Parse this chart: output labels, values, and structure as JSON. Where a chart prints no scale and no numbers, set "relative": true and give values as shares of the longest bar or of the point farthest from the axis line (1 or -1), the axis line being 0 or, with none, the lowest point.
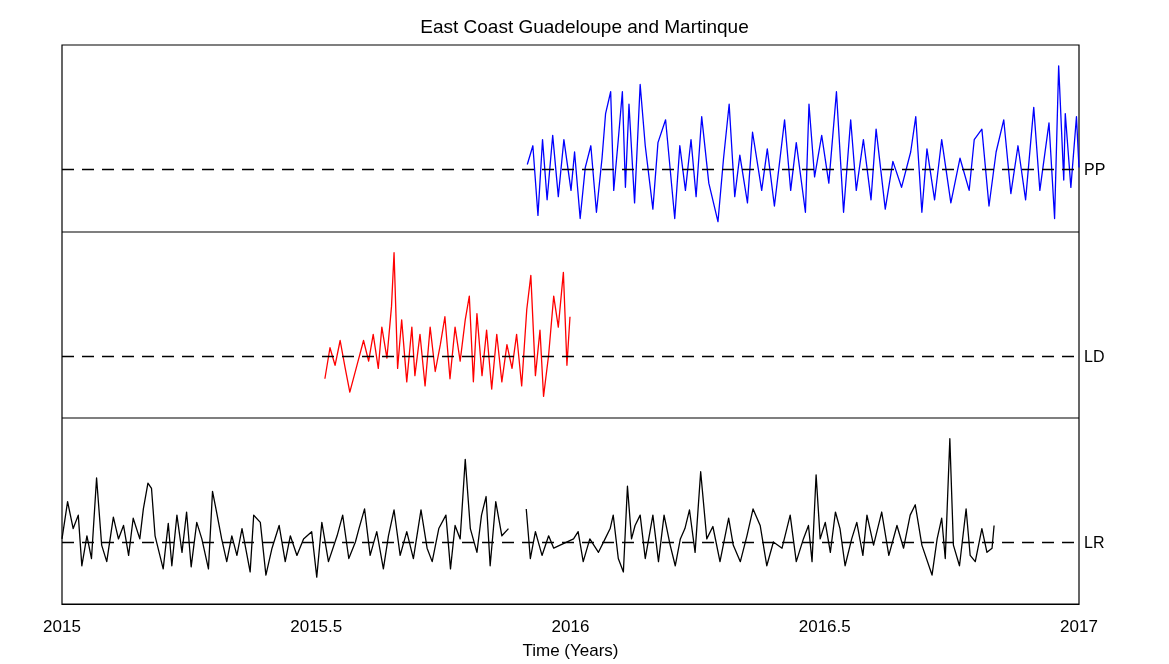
{
  "chart_data": [
    {
      "type": "line",
      "title": "East Coast Guadeloupe and Martinque",
      "relative": true,
      "marker": "none",
      "xlim": [
        2015,
        2017
      ],
      "xticks": [
        2015,
        2015.5,
        2016,
        2016.5,
        2017
      ],
      "tick_labels": false,
      "ref_lines": [
        {
          "axis": "y",
          "value": 0,
          "label": "PP",
          "line_style": "dashed",
          "color": "#000000"
        }
      ],
      "series": [
        {
          "color": "#0000ff",
          "x": [
            2015.915,
            2015.926,
            2015.936,
            2015.945,
            2015.954,
            2015.965,
            2015.976,
            2015.987,
            2016.001,
            2016.008,
            2016.019,
            2016.029,
            2016.04,
            2016.051,
            2016.062,
            2016.069,
            2016.079,
            2016.085,
            2016.094,
            2016.102,
            2016.108,
            2016.115,
            2016.126,
            2016.137,
            2016.147,
            2016.162,
            2016.172,
            2016.187,
            2016.205,
            2016.215,
            2016.226,
            2016.237,
            2016.247,
            2016.258,
            2016.272,
            2016.29,
            2016.301,
            2016.312,
            2016.323,
            2016.333,
            2016.348,
            2016.358,
            2016.376,
            2016.387,
            2016.401,
            2016.421,
            2016.433,
            2016.444,
            2016.462,
            2016.469,
            2016.48,
            2016.494,
            2016.508,
            2016.523,
            2016.537,
            2016.551,
            2016.562,
            2016.576,
            2016.591,
            2016.601,
            2016.619,
            2016.634,
            2016.651,
            2016.669,
            2016.679,
            2016.691,
            2016.701,
            2016.716,
            2016.73,
            2016.748,
            2016.766,
            2016.784,
            2016.794,
            2016.809,
            2016.823,
            2016.837,
            2016.852,
            2016.866,
            2016.88,
            2016.895,
            2016.911,
            2016.923,
            2016.941,
            2016.952,
            2016.96,
            2016.97,
            2016.973,
            2016.984,
            2016.995,
            2017
          ],
          "values": [
            0.05,
            0.23,
            -0.44,
            0.29,
            -0.29,
            0.33,
            -0.26,
            0.29,
            -0.2,
            0.17,
            -0.47,
            0.02,
            0.23,
            -0.41,
            0.11,
            0.54,
            0.75,
            -0.2,
            0.29,
            0.75,
            -0.17,
            0.63,
            -0.32,
            0.82,
            0.23,
            -0.38,
            0.26,
            0.48,
            -0.47,
            0.23,
            -0.2,
            0.29,
            -0.26,
            0.51,
            -0.13,
            -0.5,
            0.11,
            0.63,
            -0.26,
            0.14,
            -0.32,
            0.36,
            -0.2,
            0.2,
            -0.35,
            0.48,
            -0.2,
            0.26,
            -0.41,
            0.63,
            -0.07,
            0.33,
            -0.13,
            0.75,
            -0.41,
            0.48,
            -0.2,
            0.29,
            -0.29,
            0.39,
            -0.38,
            0.08,
            -0.17,
            0.17,
            0.51,
            -0.41,
            0.2,
            -0.29,
            0.29,
            -0.32,
            0.11,
            -0.2,
            0.29,
            0.39,
            -0.35,
            0.17,
            0.48,
            -0.23,
            0.23,
            -0.29,
            0.6,
            -0.2,
            0.45,
            -0.47,
            1,
            -0.1,
            0.54,
            -0.17,
            0.51,
            0.02
          ]
        }
      ]
    },
    {
      "type": "line",
      "relative": true,
      "marker": "none",
      "xlim": [
        2015,
        2017
      ],
      "xticks": [
        2015,
        2015.5,
        2016,
        2016.5,
        2017
      ],
      "tick_labels": false,
      "ref_lines": [
        {
          "axis": "y",
          "value": 0,
          "label": "LD",
          "line_style": "dashed",
          "color": "#000000"
        }
      ],
      "series": [
        {
          "color": "#ff0000",
          "x": [
            2015.517,
            2015.527,
            2015.537,
            2015.547,
            2015.557,
            2015.566,
            2015.58,
            2015.593,
            2015.603,
            2015.612,
            2015.622,
            2015.629,
            2015.639,
            2015.648,
            2015.653,
            2015.66,
            2015.668,
            2015.678,
            2015.688,
            2015.694,
            2015.704,
            2015.714,
            2015.724,
            2015.734,
            2015.744,
            2015.753,
            2015.763,
            2015.773,
            2015.783,
            2015.793,
            2015.801,
            2015.809,
            2015.816,
            2015.826,
            2015.835,
            2015.845,
            2015.855,
            2015.865,
            2015.875,
            2015.885,
            2015.894,
            2015.904,
            2015.914,
            2015.922,
            2015.931,
            2015.94,
            2015.947,
            2015.957,
            2015.967,
            2015.976,
            2015.986,
            2015.993,
            2015.999
          ],
          "values": [
            -0.22,
            0.08,
            -0.09,
            0.15,
            -0.12,
            -0.35,
            -0.09,
            0.15,
            -0.05,
            0.21,
            -0.12,
            0.28,
            -0.02,
            0.48,
            1,
            -0.12,
            0.35,
            -0.25,
            0.28,
            -0.19,
            0.21,
            -0.29,
            0.28,
            -0.15,
            0.11,
            0.38,
            -0.22,
            0.28,
            -0.05,
            0.35,
            0.58,
            -0.25,
            0.41,
            -0.19,
            0.25,
            -0.32,
            0.21,
            -0.25,
            0.11,
            -0.12,
            0.21,
            -0.29,
            0.45,
            0.78,
            -0.19,
            0.25,
            -0.39,
            0.01,
            0.58,
            0.28,
            0.81,
            -0.09,
            0.38
          ]
        }
      ]
    },
    {
      "type": "line",
      "xlabel": "Time (Years)",
      "relative": true,
      "marker": "none",
      "xlim": [
        2015,
        2017
      ],
      "xticks": [
        2015,
        2015.5,
        2016,
        2016.5,
        2017
      ],
      "tick_labels": "x",
      "ref_lines": [
        {
          "axis": "y",
          "value": 0,
          "label": "LR",
          "line_style": "dashed",
          "color": "#000000"
        }
      ],
      "series": [
        {
          "color": "#000000",
          "x": [
            2015,
            2015.011,
            2015.022,
            2015.032,
            2015.039,
            2015.049,
            2015.058,
            2015.068,
            2015.078,
            2015.088,
            2015.101,
            2015.111,
            2015.121,
            2015.131,
            2015.14,
            2015.153,
            2015.16,
            2015.169,
            2015.176,
            2015.183,
            2015.199,
            2015.209,
            2015.216,
            2015.226,
            2015.236,
            2015.245,
            2015.254,
            2015.265,
            2015.275,
            2015.288,
            2015.296,
            2015.304,
            2015.314,
            2015.324,
            2015.334,
            2015.344,
            2015.354,
            2015.37,
            2015.377,
            2015.39,
            2015.401,
            2015.413,
            2015.427,
            2015.439,
            2015.449,
            2015.462,
            2015.475,
            2015.491,
            2015.501,
            2015.511,
            2015.524,
            2015.541,
            2015.552,
            2015.564,
            2015.577,
            2015.584,
            2015.595,
            2015.606,
            2015.619,
            2015.632,
            2015.642,
            2015.653,
            2015.665,
            2015.678,
            2015.691,
            2015.706,
            2015.718,
            2015.728,
            2015.741,
            2015.755,
            2015.764,
            2015.773,
            2015.783,
            2015.793,
            2015.803,
            2015.816,
            2015.825,
            2015.834,
            2015.842,
            2015.853,
            2015.865,
            2015.878,
            2015.898,
            2015.913,
            2015.921,
            2015.931,
            2015.944,
            2015.957,
            2015.967,
            2016.006,
            2016.015,
            2016.025,
            2016.038,
            2016.055,
            2016.068,
            2016.078,
            2016.084,
            2016.094,
            2016.104,
            2016.112,
            2016.12,
            2016.127,
            2016.137,
            2016.147,
            2016.162,
            2016.173,
            2016.184,
            2016.196,
            2016.206,
            2016.216,
            2016.225,
            2016.234,
            2016.245,
            2016.256,
            2016.268,
            2016.28,
            2016.294,
            2016.311,
            2016.32,
            2016.334,
            2016.347,
            2016.359,
            2016.373,
            2016.386,
            2016.399,
            2016.416,
            2016.432,
            2016.444,
            2016.458,
            2016.468,
            2016.475,
            2016.483,
            2016.491,
            2016.501,
            2016.511,
            2016.521,
            2016.53,
            2016.54,
            2016.553,
            2016.563,
            2016.575,
            2016.583,
            2016.596,
            2016.612,
            2016.626,
            2016.642,
            2016.655,
            2016.668,
            2016.678,
            2016.691,
            2016.711,
            2016.721,
            2016.73,
            2016.737,
            2016.746,
            2016.753,
            2016.765,
            2016.778,
            2016.786,
            2016.796,
            2016.809,
            2016.819,
            2016.829,
            2016.833
          ],
          "values": [
            0.03,
            0.39,
            0.13,
            0.26,
            -0.23,
            0.06,
            -0.16,
            0.62,
            -0.03,
            -0.19,
            0.24,
            0.03,
            0.16,
            -0.13,
            0.23,
            0.03,
            0.32,
            0.57,
            0.52,
            0.06,
            -0.26,
            0.18,
            -0.23,
            0.26,
            -0.1,
            0.29,
            -0.24,
            0.19,
            0.03,
            -0.26,
            0.49,
            0.29,
            0.03,
            -0.19,
            0.06,
            -0.13,
            0.13,
            -0.29,
            0.26,
            0.19,
            -0.32,
            -0.06,
            0.16,
            -0.19,
            0.06,
            -0.13,
            0.03,
            0.1,
            -0.34,
            0.19,
            -0.19,
            0.06,
            0.26,
            -0.16,
            0,
            0.13,
            0.32,
            -0.13,
            0.1,
            -0.26,
            0.06,
            0.31,
            -0.13,
            0.1,
            -0.16,
            0.31,
            -0.06,
            -0.19,
            0.13,
            0.26,
            -0.26,
            0.16,
            0.03,
            0.8,
            0.13,
            -0.1,
            0.26,
            0.44,
            -0.23,
            0.39,
            0.06,
            0.13,
            null,
            0.32,
            -0.16,
            0.1,
            -0.13,
            0.06,
            -0.06,
            0.03,
            0.1,
            -0.19,
            0.03,
            -0.1,
            0.03,
            0.13,
            0.26,
            -0.16,
            -0.29,
            0.54,
            0.03,
            0.16,
            0.26,
            -0.16,
            0.26,
            -0.19,
            0.26,
            -0.03,
            -0.23,
            0.03,
            0.13,
            0.31,
            -0.1,
            0.68,
            0.03,
            0.15,
            -0.19,
            0.23,
            -0.03,
            -0.19,
            0.06,
            0.32,
            0.16,
            -0.23,
            0,
            -0.06,
            0.26,
            -0.19,
            0.03,
            0.16,
            -0.19,
            0.65,
            0.03,
            0.19,
            -0.1,
            0.29,
            0.13,
            -0.23,
            0.03,
            0.19,
            -0.13,
            0.26,
            -0.03,
            0.29,
            -0.13,
            0.16,
            -0.06,
            0.26,
            0.36,
            -0.03,
            -0.32,
            0.03,
            0.23,
            -0.16,
            1,
            -0.03,
            -0.23,
            0.32,
            -0.13,
            -0.19,
            0.13,
            -0.1,
            -0.06,
            0.16
          ]
        }
      ]
    }
  ]
}
